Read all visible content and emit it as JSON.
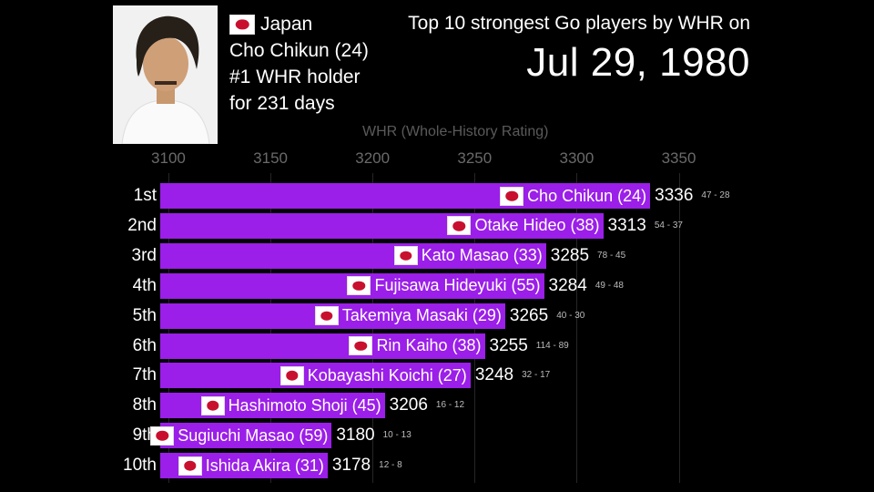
{
  "headline": {
    "subtitle": "Top 10 strongest Go players by WHR on",
    "date": "Jul 29, 1980"
  },
  "holder": {
    "country": "Japan",
    "name": "Cho Chikun (24)",
    "title": "#1 WHR holder",
    "duration": "for 231 days"
  },
  "colors": {
    "bar": "#9b1fe8",
    "background": "#000000",
    "flag_red": "#c8102e"
  },
  "chart_data": {
    "type": "bar",
    "orientation": "horizontal",
    "xlabel": "WHR (Whole-History Rating)",
    "xlim": [
      3096,
      3352
    ],
    "x_ticks": [
      3100,
      3150,
      3200,
      3250,
      3300,
      3350
    ],
    "grid": true,
    "rows": [
      {
        "rank": "1st",
        "name": "Cho Chikun (24)",
        "value": 3336,
        "record": "47 - 28"
      },
      {
        "rank": "2nd",
        "name": "Otake Hideo (38)",
        "value": 3313,
        "record": "54 - 37"
      },
      {
        "rank": "3rd",
        "name": "Kato Masao (33)",
        "value": 3285,
        "record": "78 - 45"
      },
      {
        "rank": "4th",
        "name": "Fujisawa Hideyuki (55)",
        "value": 3284,
        "record": "49 - 48"
      },
      {
        "rank": "5th",
        "name": "Takemiya Masaki (29)",
        "value": 3265,
        "record": "40 - 30"
      },
      {
        "rank": "6th",
        "name": "Rin Kaiho (38)",
        "value": 3255,
        "record": "114 - 89"
      },
      {
        "rank": "7th",
        "name": "Kobayashi Koichi (27)",
        "value": 3248,
        "record": "32 - 17"
      },
      {
        "rank": "8th",
        "name": "Hashimoto Shoji (45)",
        "value": 3206,
        "record": "16 - 12"
      },
      {
        "rank": "9th",
        "name": "Sugiuchi Masao (59)",
        "value": 3180,
        "record": "10 - 13"
      },
      {
        "rank": "10th",
        "name": "Ishida Akira (31)",
        "value": 3178,
        "record": "12 - 8"
      }
    ]
  }
}
